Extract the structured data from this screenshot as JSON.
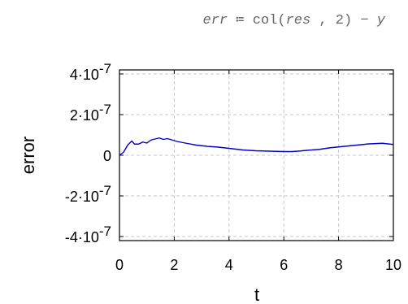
{
  "formula": {
    "lhs": "err",
    "assign": " ≔ ",
    "func": "col",
    "open": "(",
    "arg1": "res",
    "sep": " , ",
    "arg2": "2",
    "close": ")",
    "minus": " − ",
    "rhs": "y"
  },
  "chart_data": {
    "type": "line",
    "xlabel": "t",
    "ylabel": "error",
    "xlim": [
      0,
      10
    ],
    "ylim": [
      -4.2e-07,
      4.2e-07
    ],
    "x_ticks": [
      0,
      2,
      4,
      6,
      8,
      10
    ],
    "x_tick_labels": [
      "0",
      "2",
      "4",
      "6",
      "8",
      "10"
    ],
    "y_ticks": [
      4e-07,
      2e-07,
      0,
      -2e-07,
      -4e-07
    ],
    "y_tick_labels": [
      {
        "mant": "4",
        "base": "10",
        "exp": "-7"
      },
      {
        "mant": "2",
        "base": "10",
        "exp": "-7"
      },
      {
        "mant": "0",
        "base": "",
        "exp": ""
      },
      {
        "mant": "-2",
        "base": "10",
        "exp": "-7"
      },
      {
        "mant": "-4",
        "base": "10",
        "exp": "-7"
      }
    ],
    "grid": true,
    "line_color": "#0000cc",
    "series": [
      {
        "x": [
          0,
          0.15,
          0.3,
          0.45,
          0.55,
          0.7,
          0.85,
          1.0,
          1.15,
          1.3,
          1.45,
          1.6,
          1.75,
          1.9,
          2.1,
          2.4,
          2.8,
          3.2,
          3.6,
          4.0,
          4.5,
          5.0,
          5.5,
          6.0,
          6.3,
          6.6,
          6.9,
          7.3,
          7.7,
          8.0,
          8.3,
          8.6,
          8.9,
          9.1,
          9.3,
          9.6,
          9.8,
          10.0
        ],
        "y": [
          0,
          1.5e-08,
          5e-08,
          7e-08,
          5.5e-08,
          5.5e-08,
          6.5e-08,
          6e-08,
          7.5e-08,
          8e-08,
          8.5e-08,
          7.8e-08,
          8.2e-08,
          7.6e-08,
          6.8e-08,
          6e-08,
          5e-08,
          4.4e-08,
          4e-08,
          3.4e-08,
          2.6e-08,
          2.2e-08,
          2e-08,
          1.8e-08,
          1.8e-08,
          2.1e-08,
          2.5e-08,
          2.9e-08,
          3.7e-08,
          4.1e-08,
          4.5e-08,
          4.9e-08,
          5.3e-08,
          5.6e-08,
          5.7e-08,
          5.9e-08,
          5.6e-08,
          5.3e-08
        ]
      }
    ]
  }
}
